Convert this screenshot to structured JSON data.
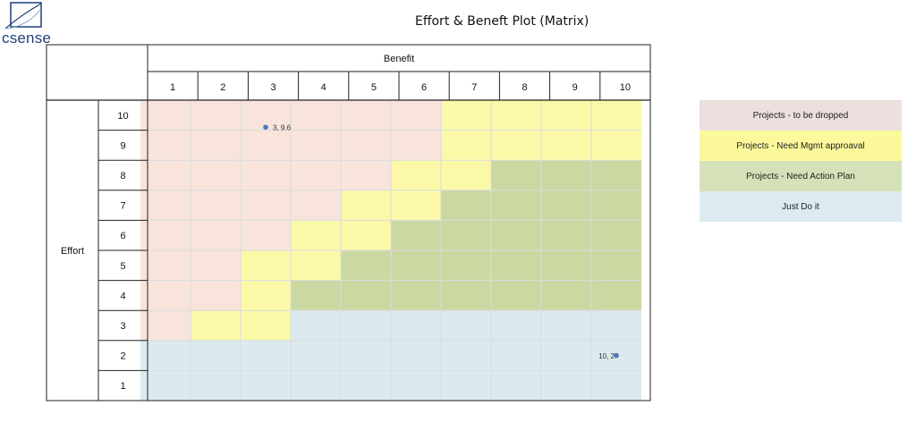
{
  "logo": {
    "text": "csense"
  },
  "chart_data": {
    "type": "scatter",
    "title": "Effort & Beneft Plot (Matrix)",
    "xlabel": "Benefit",
    "ylabel": "Effort",
    "xlim": [
      0.5,
      10.5
    ],
    "ylim": [
      0.5,
      10.5
    ],
    "x_ticks": [
      "1",
      "2",
      "3",
      "4",
      "5",
      "6",
      "7",
      "8",
      "9",
      "10"
    ],
    "y_ticks": [
      "10",
      "9",
      "8",
      "7",
      "6",
      "5",
      "4",
      "3",
      "2",
      "1"
    ],
    "points": [
      {
        "x": 3,
        "y": 9.6,
        "label": "3, 9.6"
      },
      {
        "x": 10,
        "y": 2,
        "label": "10, 2"
      }
    ],
    "zones": [
      {
        "name": "Projects - to be dropped",
        "color": "#f8e4da"
      },
      {
        "name": "Projects - Need Mgmt approaval",
        "color": "#fbf9a8"
      },
      {
        "name": "Projects - Need Action Plan",
        "color": "#cbd8a1"
      },
      {
        "name": "Just Do it",
        "color": "#dceaf0"
      }
    ],
    "legend_position": "right",
    "grid": true
  },
  "legend": [
    {
      "label": "Projects - to be dropped",
      "color": "#ecdfde"
    },
    {
      "label": "Projects - Need Mgmt approaval",
      "color": "#fbf99c"
    },
    {
      "label": "Projects - Need Action Plan",
      "color": "#d5e2b9"
    },
    {
      "label": "Just Do it",
      "color": "#dcebf0"
    }
  ]
}
